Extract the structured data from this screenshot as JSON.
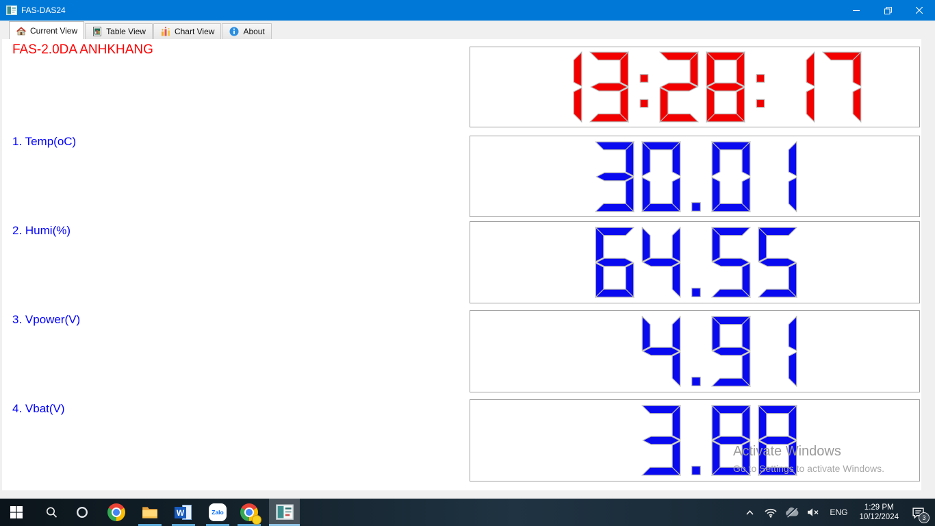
{
  "window": {
    "title": "FAS-DAS24"
  },
  "tabs": [
    {
      "label": "Current View",
      "icon": "home-icon",
      "active": true
    },
    {
      "label": "Table View",
      "icon": "table-icon",
      "active": false
    },
    {
      "label": "Chart View",
      "icon": "chart-icon",
      "active": false
    },
    {
      "label": "About",
      "icon": "info-icon",
      "active": false
    }
  ],
  "main": {
    "device_title": "FAS-2.0DA ANHKHANG",
    "clock": {
      "value": "13:28:17",
      "color": "#f20000"
    },
    "channels": [
      {
        "label": "1. Temp(oC)",
        "value": "30.01",
        "color": "#0a0af0"
      },
      {
        "label": "2. Humi(%)",
        "value": "64.55",
        "color": "#0a0af0"
      },
      {
        "label": "3. Vpower(V)",
        "value": "4.91",
        "color": "#0a0af0"
      },
      {
        "label": "4. Vbat(V)",
        "value": "3.88",
        "color": "#0a0af0"
      }
    ]
  },
  "watermark": {
    "line1": "Activate Windows",
    "line2": "Go to Settings to activate Windows."
  },
  "taskbar": {
    "word_label": "W",
    "zalo_label": "Zalo",
    "tray": {
      "language": "ENG",
      "time": "1:29 PM",
      "date": "10/12/2024",
      "notification_count": "3"
    }
  }
}
